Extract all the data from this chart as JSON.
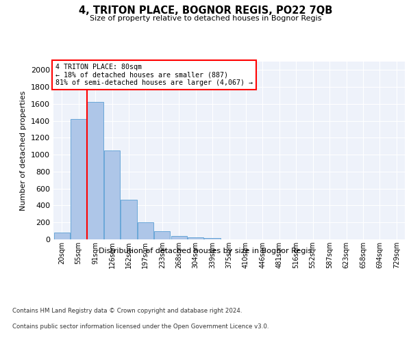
{
  "title": "4, TRITON PLACE, BOGNOR REGIS, PO22 7QB",
  "subtitle": "Size of property relative to detached houses in Bognor Regis",
  "xlabel": "Distribution of detached houses by size in Bognor Regis",
  "ylabel": "Number of detached properties",
  "categories": [
    "20sqm",
    "55sqm",
    "91sqm",
    "126sqm",
    "162sqm",
    "197sqm",
    "233sqm",
    "268sqm",
    "304sqm",
    "339sqm",
    "375sqm",
    "410sqm",
    "446sqm",
    "481sqm",
    "516sqm",
    "552sqm",
    "587sqm",
    "623sqm",
    "658sqm",
    "694sqm",
    "729sqm"
  ],
  "values": [
    80,
    1420,
    1620,
    1050,
    470,
    200,
    100,
    40,
    25,
    18,
    0,
    0,
    0,
    0,
    0,
    0,
    0,
    0,
    0,
    0,
    0
  ],
  "bar_color": "#aec6e8",
  "bar_edge_color": "#5a9fd4",
  "property_line_x": 1.5,
  "property_sqm": 80,
  "pct_smaller": 18,
  "n_smaller": 887,
  "pct_larger_semi": 81,
  "n_larger_semi": 4067,
  "annotation_box_color": "#ff0000",
  "ylim": [
    0,
    2100
  ],
  "yticks": [
    0,
    200,
    400,
    600,
    800,
    1000,
    1200,
    1400,
    1600,
    1800,
    2000
  ],
  "footnote1": "Contains HM Land Registry data © Crown copyright and database right 2024.",
  "footnote2": "Contains public sector information licensed under the Open Government Licence v3.0.",
  "background_color": "#eef2fa",
  "grid_color": "#ffffff",
  "fig_bg_color": "#ffffff"
}
